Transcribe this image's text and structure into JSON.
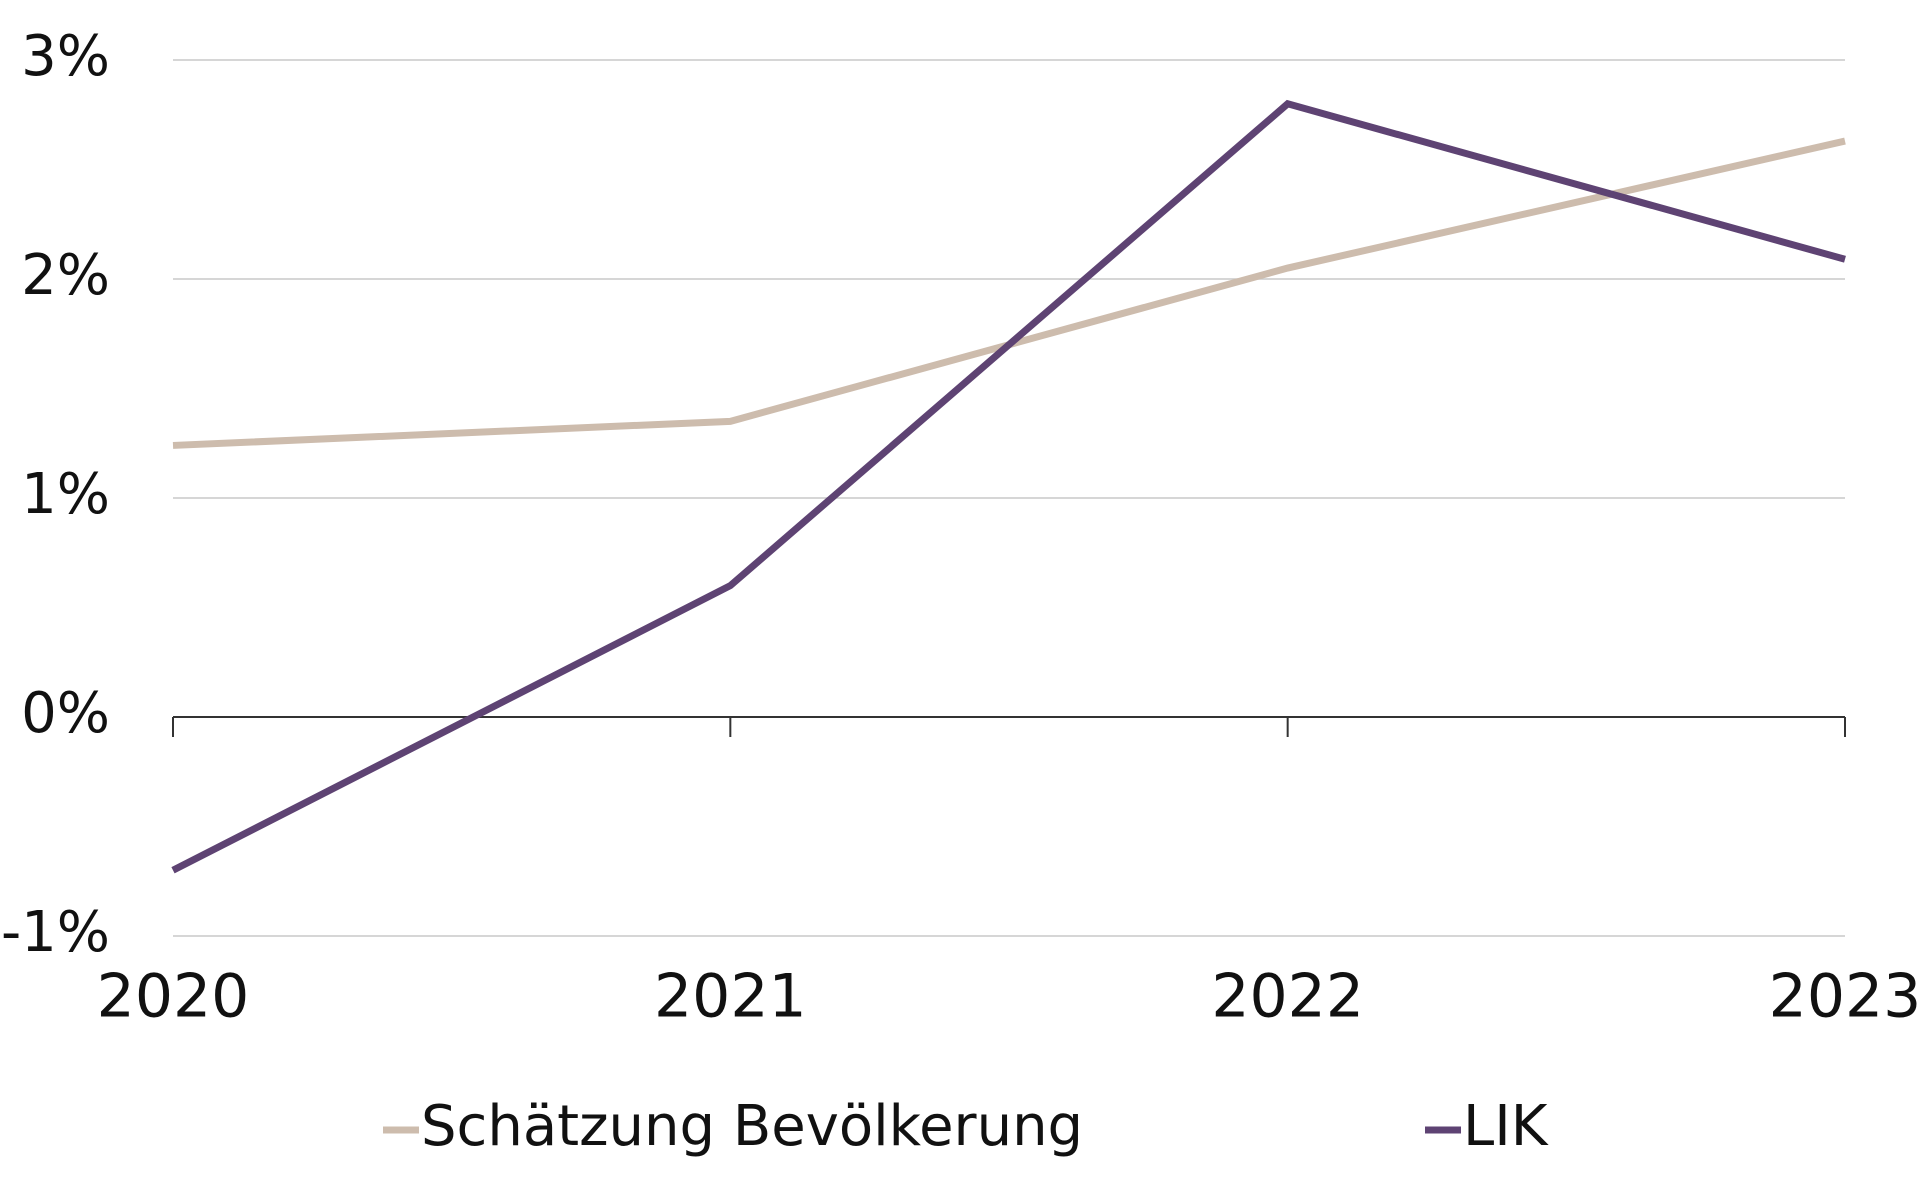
{
  "chart_data": {
    "type": "line",
    "categories": [
      "2020",
      "2021",
      "2022",
      "2023"
    ],
    "series": [
      {
        "name": "Schätzung Bevölkerung",
        "color": "#cdbcad",
        "values": [
          1.24,
          1.35,
          2.05,
          2.63
        ]
      },
      {
        "name": "LIK",
        "color": "#5e4373",
        "values": [
          -0.7,
          0.6,
          2.8,
          2.09
        ]
      }
    ],
    "ylim": [
      -1,
      3
    ],
    "yticks": [
      {
        "value": -1,
        "label": "-1%"
      },
      {
        "value": 0,
        "label": "0%"
      },
      {
        "value": 1,
        "label": "1%"
      },
      {
        "value": 2,
        "label": "2%"
      },
      {
        "value": 3,
        "label": "3%"
      }
    ],
    "grid": true,
    "legend": "bottom"
  }
}
